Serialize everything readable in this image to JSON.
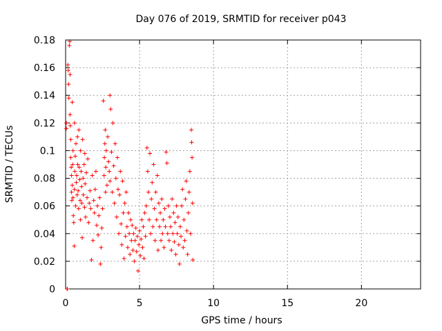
{
  "chart_data": {
    "type": "scatter",
    "title": "Day 076 of 2019, SRMTID for receiver p043",
    "xlabel": "GPS time / hours",
    "ylabel": "SRMTID / TECUs",
    "xlim": [
      0,
      24
    ],
    "ylim": [
      0,
      0.18
    ],
    "xticks": [
      0,
      5,
      10,
      15,
      20
    ],
    "yticks": [
      0,
      0.02,
      0.04,
      0.06,
      0.08,
      0.1,
      0.12,
      0.14,
      0.16,
      0.18
    ],
    "xtick_labels": [
      "0",
      "5",
      "10",
      "15",
      "20"
    ],
    "ytick_labels": [
      "0",
      "0.02",
      "0.04",
      "0.06",
      "0.08",
      "0.1",
      "0.12",
      "0.14",
      "0.16",
      "0.18"
    ],
    "grid": true,
    "marker": "+",
    "color": "#ff0000",
    "series": [
      {
        "name": "SRMTID",
        "points": [
          [
            0.05,
            0.12
          ],
          [
            0.05,
            0.116
          ],
          [
            0.1,
            0.0
          ],
          [
            0.12,
            0.0
          ],
          [
            0.15,
            0.162
          ],
          [
            0.18,
            0.158
          ],
          [
            0.2,
            0.148
          ],
          [
            0.22,
            0.138
          ],
          [
            0.25,
            0.176
          ],
          [
            0.28,
            0.179
          ],
          [
            0.3,
            0.155
          ],
          [
            0.3,
            0.126
          ],
          [
            0.32,
            0.118
          ],
          [
            0.35,
            0.108
          ],
          [
            0.35,
            0.095
          ],
          [
            0.38,
            0.088
          ],
          [
            0.4,
            0.082
          ],
          [
            0.4,
            0.07
          ],
          [
            0.42,
            0.064
          ],
          [
            0.45,
            0.135
          ],
          [
            0.45,
            0.075
          ],
          [
            0.48,
            0.09
          ],
          [
            0.5,
            0.1
          ],
          [
            0.5,
            0.066
          ],
          [
            0.52,
            0.053
          ],
          [
            0.55,
            0.048
          ],
          [
            0.58,
            0.031
          ],
          [
            0.6,
            0.12
          ],
          [
            0.6,
            0.072
          ],
          [
            0.62,
            0.085
          ],
          [
            0.65,
            0.096
          ],
          [
            0.68,
            0.06
          ],
          [
            0.7,
            0.105
          ],
          [
            0.72,
            0.077
          ],
          [
            0.75,
            0.082
          ],
          [
            0.78,
            0.068
          ],
          [
            0.8,
            0.11
          ],
          [
            0.82,
            0.09
          ],
          [
            0.85,
            0.071
          ],
          [
            0.88,
            0.058
          ],
          [
            0.9,
            0.115
          ],
          [
            0.92,
            0.088
          ],
          [
            0.95,
            0.079
          ],
          [
            0.98,
            0.064
          ],
          [
            1.0,
            0.1
          ],
          [
            1.0,
            0.05
          ],
          [
            1.05,
            0.085
          ],
          [
            1.08,
            0.074
          ],
          [
            1.1,
            0.062
          ],
          [
            1.12,
            0.037
          ],
          [
            1.15,
            0.108
          ],
          [
            1.18,
            0.08
          ],
          [
            1.2,
            0.068
          ],
          [
            1.25,
            0.09
          ],
          [
            1.28,
            0.059
          ],
          [
            1.3,
            0.098
          ],
          [
            1.32,
            0.076
          ],
          [
            1.35,
            0.052
          ],
          [
            1.4,
            0.084
          ],
          [
            1.45,
            0.066
          ],
          [
            1.5,
            0.094
          ],
          [
            1.55,
            0.048
          ],
          [
            1.6,
            0.062
          ],
          [
            1.65,
            0.071
          ],
          [
            1.7,
            0.058
          ],
          [
            1.75,
            0.021
          ],
          [
            1.8,
            0.082
          ],
          [
            1.85,
            0.035
          ],
          [
            1.9,
            0.064
          ],
          [
            1.95,
            0.055
          ],
          [
            2.0,
            0.072
          ],
          [
            2.05,
            0.085
          ],
          [
            2.1,
            0.046
          ],
          [
            2.15,
            0.06
          ],
          [
            2.2,
            0.039
          ],
          [
            2.25,
            0.053
          ],
          [
            2.3,
            0.066
          ],
          [
            2.35,
            0.018
          ],
          [
            2.4,
            0.03
          ],
          [
            2.45,
            0.044
          ],
          [
            2.5,
            0.058
          ],
          [
            2.55,
            0.136
          ],
          [
            2.6,
            0.082
          ],
          [
            2.62,
            0.095
          ],
          [
            2.65,
            0.105
          ],
          [
            2.68,
            0.115
          ],
          [
            2.7,
            0.07
          ],
          [
            2.72,
            0.088
          ],
          [
            2.75,
            0.1
          ],
          [
            2.8,
            0.075
          ],
          [
            2.85,
            0.11
          ],
          [
            2.9,
            0.092
          ],
          [
            2.95,
            0.085
          ],
          [
            3.0,
            0.14
          ],
          [
            3.0,
            0.078
          ],
          [
            3.05,
            0.13
          ],
          [
            3.1,
            0.099
          ],
          [
            3.15,
            0.07
          ],
          [
            3.2,
            0.12
          ],
          [
            3.25,
            0.089
          ],
          [
            3.3,
            0.062
          ],
          [
            3.35,
            0.105
          ],
          [
            3.4,
            0.08
          ],
          [
            3.45,
            0.052
          ],
          [
            3.5,
            0.095
          ],
          [
            3.55,
            0.072
          ],
          [
            3.6,
            0.04
          ],
          [
            3.65,
            0.068
          ],
          [
            3.7,
            0.085
          ],
          [
            3.75,
            0.047
          ],
          [
            3.8,
            0.032
          ],
          [
            3.85,
            0.078
          ],
          [
            3.9,
            0.055
          ],
          [
            3.95,
            0.022
          ],
          [
            4.0,
            0.062
          ],
          [
            4.05,
            0.038
          ],
          [
            4.1,
            0.07
          ],
          [
            4.15,
            0.045
          ],
          [
            4.2,
            0.03
          ],
          [
            4.25,
            0.055
          ],
          [
            4.3,
            0.04
          ],
          [
            4.35,
            0.025
          ],
          [
            4.4,
            0.05
          ],
          [
            4.45,
            0.035
          ],
          [
            4.5,
            0.046
          ],
          [
            4.55,
            0.028
          ],
          [
            4.6,
            0.04
          ],
          [
            4.65,
            0.02
          ],
          [
            4.7,
            0.035
          ],
          [
            4.75,
            0.044
          ],
          [
            4.8,
            0.027
          ],
          [
            4.85,
            0.038
          ],
          [
            4.9,
            0.013
          ],
          [
            4.95,
            0.032
          ],
          [
            5.0,
            0.042
          ],
          [
            5.05,
            0.024
          ],
          [
            5.1,
            0.036
          ],
          [
            5.15,
            0.05
          ],
          [
            5.2,
            0.03
          ],
          [
            5.25,
            0.045
          ],
          [
            5.3,
            0.022
          ],
          [
            5.35,
            0.055
          ],
          [
            5.4,
            0.038
          ],
          [
            5.45,
            0.06
          ],
          [
            5.5,
            0.102
          ],
          [
            5.55,
            0.085
          ],
          [
            5.6,
            0.07
          ],
          [
            5.65,
            0.05
          ],
          [
            5.7,
            0.098
          ],
          [
            5.75,
            0.04
          ],
          [
            5.8,
            0.065
          ],
          [
            5.85,
            0.077
          ],
          [
            5.9,
            0.045
          ],
          [
            5.95,
            0.09
          ],
          [
            6.0,
            0.058
          ],
          [
            6.05,
            0.035
          ],
          [
            6.1,
            0.07
          ],
          [
            6.15,
            0.05
          ],
          [
            6.2,
            0.082
          ],
          [
            6.25,
            0.028
          ],
          [
            6.3,
            0.062
          ],
          [
            6.35,
            0.045
          ],
          [
            6.4,
            0.055
          ],
          [
            6.45,
            0.035
          ],
          [
            6.5,
            0.065
          ],
          [
            6.55,
            0.04
          ],
          [
            6.6,
            0.05
          ],
          [
            6.65,
            0.03
          ],
          [
            6.7,
            0.058
          ],
          [
            6.75,
            0.045
          ],
          [
            6.8,
            0.099
          ],
          [
            6.85,
            0.091
          ],
          [
            6.9,
            0.04
          ],
          [
            6.95,
            0.06
          ],
          [
            7.0,
            0.035
          ],
          [
            7.05,
            0.052
          ],
          [
            7.1,
            0.045
          ],
          [
            7.15,
            0.028
          ],
          [
            7.2,
            0.065
          ],
          [
            7.25,
            0.04
          ],
          [
            7.3,
            0.055
          ],
          [
            7.35,
            0.034
          ],
          [
            7.4,
            0.048
          ],
          [
            7.45,
            0.025
          ],
          [
            7.5,
            0.06
          ],
          [
            7.55,
            0.04
          ],
          [
            7.6,
            0.052
          ],
          [
            7.65,
            0.032
          ],
          [
            7.7,
            0.018
          ],
          [
            7.75,
            0.045
          ],
          [
            7.8,
            0.038
          ],
          [
            7.85,
            0.06
          ],
          [
            7.9,
            0.072
          ],
          [
            7.95,
            0.03
          ],
          [
            8.0,
            0.05
          ],
          [
            8.05,
            0.035
          ],
          [
            8.1,
            0.065
          ],
          [
            8.15,
            0.078
          ],
          [
            8.2,
            0.042
          ],
          [
            8.25,
            0.025
          ],
          [
            8.3,
            0.055
          ],
          [
            8.35,
            0.07
          ],
          [
            8.4,
            0.085
          ],
          [
            8.45,
            0.04
          ],
          [
            8.5,
            0.115
          ],
          [
            8.52,
            0.106
          ],
          [
            8.55,
            0.095
          ],
          [
            8.58,
            0.062
          ],
          [
            8.6,
            0.021
          ]
        ]
      }
    ]
  }
}
